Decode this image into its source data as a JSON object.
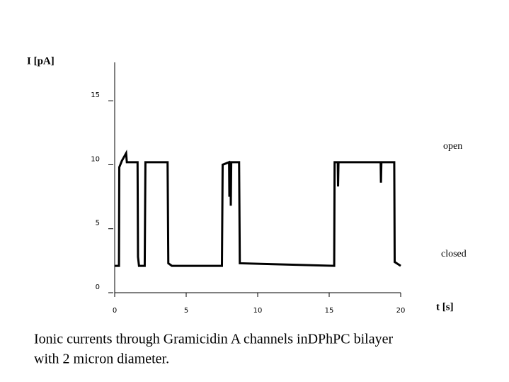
{
  "chart_data": {
    "type": "line",
    "y_label": "I [pA]",
    "x_label": "t [s]",
    "annotations": [
      "open",
      "closed"
    ],
    "caption": [
      "Ionic currents through Gramicidin A channels inDPhPC bilayer",
      "with 2 micron diameter."
    ],
    "x": [
      0,
      0.3,
      0.32,
      0.5,
      0.8,
      0.85,
      1.6,
      1.63,
      1.7,
      2.1,
      2.15,
      3.7,
      3.75,
      4,
      7.5,
      7.55,
      8.0,
      8.02,
      8.05,
      8.1,
      8.12,
      8.15,
      8.7,
      8.75,
      15.35,
      15.38,
      15.6,
      15.62,
      15.65,
      18.6,
      18.62,
      18.65,
      19.55,
      19.58,
      20
    ],
    "series": [
      {
        "color": "#000000",
        "values": [
          2.1,
          2.1,
          9.8,
          10.3,
          10.9,
          10.2,
          10.2,
          2.8,
          2.1,
          2.1,
          10.2,
          10.2,
          2.3,
          2.1,
          2.1,
          10,
          10.2,
          7.5,
          10.2,
          10.2,
          6.8,
          10.2,
          10.2,
          2.3,
          2.1,
          10.2,
          10.2,
          8.3,
          10.2,
          10.2,
          8.6,
          10.2,
          10.2,
          2.4,
          2.1
        ]
      }
    ],
    "xlim": [
      0,
      20
    ],
    "xticks": [
      0,
      5,
      10,
      15,
      20
    ],
    "ylim": [
      0,
      18
    ],
    "yticks": [
      0,
      5,
      10,
      15
    ]
  }
}
